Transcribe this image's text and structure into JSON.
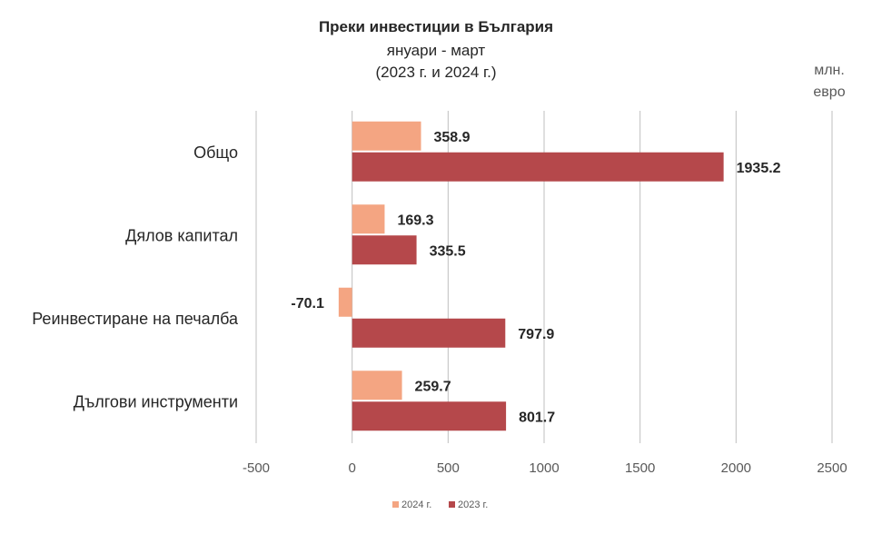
{
  "chart_data": {
    "type": "bar",
    "orientation": "horizontal",
    "title": "Преки инвестиции в България",
    "subtitle_1": "януари - март",
    "subtitle_2": "(2023 г. и 2024 г.)",
    "unit_label": "млн. евро",
    "categories": [
      "Общо",
      "Дялов капитал",
      "Реинвестиране на печалба",
      "Дългови инструменти"
    ],
    "series": [
      {
        "name": "2024 г.",
        "color": "#f4a582",
        "values": [
          358.9,
          169.3,
          -70.1,
          259.7
        ],
        "labels": [
          "358.9",
          "169.3",
          "-70.1",
          "259.7"
        ]
      },
      {
        "name": "2023 г.",
        "color": "#b5484b",
        "values": [
          1935.2,
          335.5,
          797.9,
          801.7
        ],
        "labels": [
          "1935.2",
          "335.5",
          "797.9",
          "801.7"
        ]
      }
    ],
    "xlim": [
      -500,
      2500
    ],
    "xticks": [
      "-500",
      "0",
      "500",
      "1000",
      "1500",
      "2000",
      "2500"
    ],
    "grid": true,
    "legend": "bottom"
  }
}
